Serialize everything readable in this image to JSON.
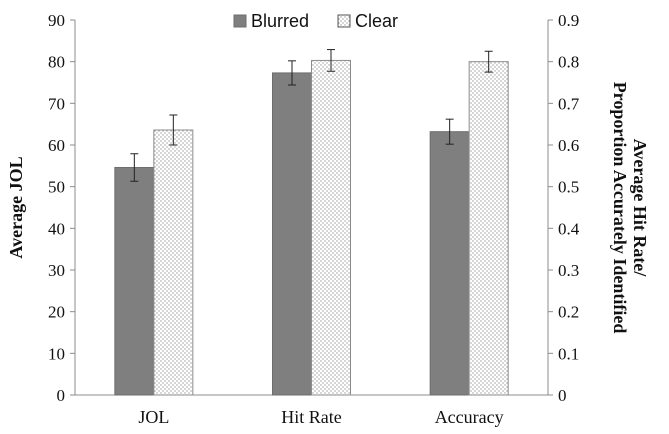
{
  "chart_data": {
    "type": "bar",
    "categories": [
      "JOL",
      "Hit Rate",
      "Accuracy"
    ],
    "series": [
      {
        "name": "Blurred",
        "axis": "left",
        "values_left_axis": [
          54.6,
          77.3,
          63.2
        ],
        "error": [
          3.3,
          2.9,
          3.0
        ],
        "color": "#7f7f7f",
        "pattern": "solid"
      },
      {
        "name": "Clear",
        "axis": "left",
        "values_left_axis": [
          63.6,
          80.3,
          80.0
        ],
        "error": [
          3.6,
          2.6,
          2.5
        ],
        "color": "#ffffff",
        "pattern": "dotted"
      }
    ],
    "ylabel": "Average JOL",
    "y2label_lines": [
      "Average Hit Rate/",
      "Proportion Accurately Identified"
    ],
    "ylim": [
      0,
      90
    ],
    "y_ticks": [
      0,
      10,
      20,
      30,
      40,
      50,
      60,
      70,
      80,
      90
    ],
    "y2lim": [
      0,
      0.9
    ],
    "y2_ticks": [
      "0",
      "0.1",
      "0.2",
      "0.3",
      "0.4",
      "0.5",
      "0.6",
      "0.7",
      "0.8",
      "0.9"
    ],
    "legend_position": "top-center",
    "grid": false
  }
}
